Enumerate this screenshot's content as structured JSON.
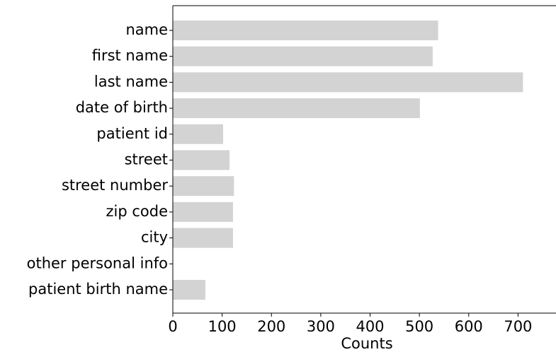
{
  "chart_data": {
    "type": "barh",
    "x_label": "Counts",
    "categories": [
      "name",
      "first name",
      "last name",
      "date of birth",
      "patient id",
      "street",
      "street number",
      "zip code",
      "city",
      "other personal info",
      "patient birth name"
    ],
    "values": [
      538,
      527,
      710,
      501,
      102,
      115,
      124,
      122,
      122,
      0,
      66
    ],
    "color": "#d3d3d3",
    "xlim": [
      0,
      777
    ],
    "xticks": [
      0,
      100,
      200,
      300,
      400,
      500,
      600,
      700
    ]
  }
}
